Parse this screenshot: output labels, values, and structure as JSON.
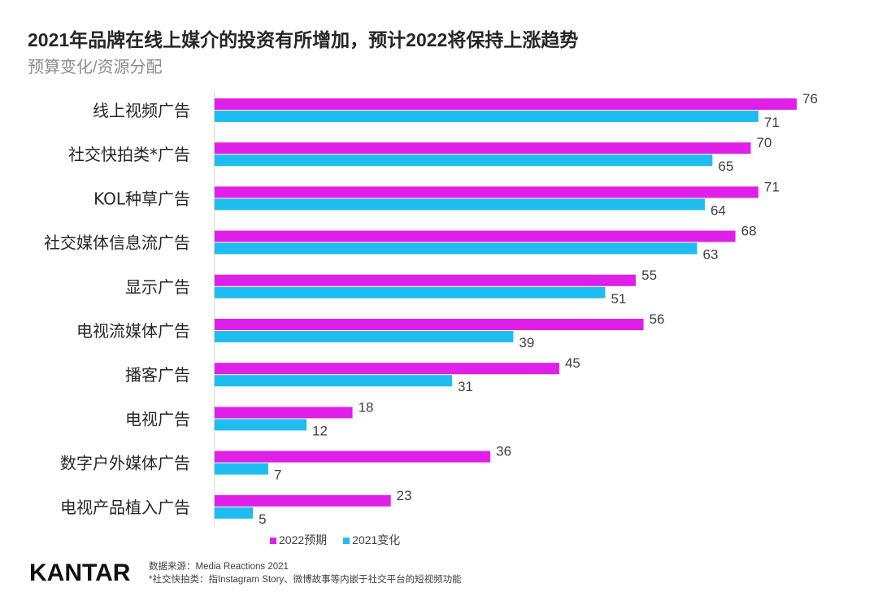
{
  "title": "2021年品牌在线上媒介的投资有所增加，预计2022将保持上涨趋势",
  "subtitle": "预算变化/资源分配",
  "chart_data": {
    "type": "bar",
    "orientation": "horizontal",
    "categories": [
      "线上视频广告",
      "社交快拍类*广告",
      "KOL种草广告",
      "社交媒体信息流广告",
      "显示广告",
      "电视流媒体广告",
      "播客广告",
      "电视广告",
      "数字户外媒体广告",
      "电视产品植入广告"
    ],
    "series": [
      {
        "name": "2022预期",
        "color": "#e01fe8",
        "values": [
          76,
          70,
          71,
          68,
          55,
          56,
          45,
          18,
          36,
          23
        ]
      },
      {
        "name": "2021变化",
        "color": "#1fbdef",
        "values": [
          71,
          65,
          64,
          63,
          51,
          39,
          31,
          12,
          7,
          5
        ]
      }
    ],
    "xlim": [
      0,
      76
    ],
    "grid": false,
    "legend": "bottom"
  },
  "footer": {
    "logo": "KANTAR",
    "source": "数据来源：Media Reactions 2021",
    "note": "*社交快拍类：指Instagram Story、微博故事等内嵌于社交平台的短视频功能"
  }
}
